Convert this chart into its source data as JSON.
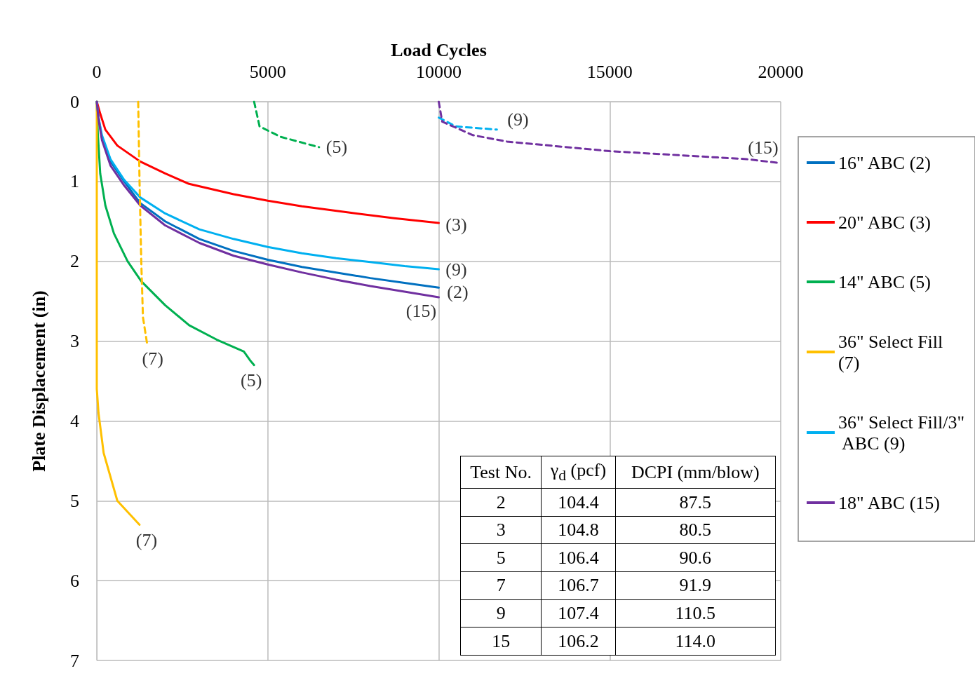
{
  "chart_data": {
    "type": "line",
    "xlabel": "Load Cycles",
    "ylabel": "Plate Displacement (in)",
    "xlim": [
      0,
      20000
    ],
    "xticks": [
      0,
      5000,
      10000,
      15000,
      20000
    ],
    "ylim": [
      7,
      0
    ],
    "yticks": [
      0,
      1,
      2,
      3,
      4,
      5,
      6,
      7
    ],
    "grid": true,
    "legend": "right",
    "marker": "none",
    "series": [
      {
        "name": "16\" ABC (2)",
        "color": "#0070c0",
        "line_style": "solid",
        "x": [
          0,
          50,
          150,
          400,
          800,
          1270,
          2000,
          3000,
          4000,
          5000,
          6000,
          7000,
          8000,
          9000,
          10000
        ],
        "values": [
          0,
          0.2,
          0.45,
          0.75,
          1.0,
          1.27,
          1.5,
          1.72,
          1.87,
          1.98,
          2.07,
          2.14,
          2.21,
          2.27,
          2.33
        ]
      },
      {
        "name": "20\" ABC (3)",
        "color": "#ff0000",
        "line_style": "solid",
        "x": [
          0,
          100,
          250,
          600,
          1270,
          2000,
          2700,
          4000,
          5000,
          6000,
          7400,
          8700,
          10000
        ],
        "values": [
          0,
          0.15,
          0.35,
          0.55,
          0.75,
          0.9,
          1.03,
          1.16,
          1.24,
          1.31,
          1.39,
          1.46,
          1.52
        ]
      },
      {
        "name": "14\" ABC (5)",
        "color": "#00b050",
        "line_style": "solid",
        "x": [
          0,
          30,
          100,
          250,
          500,
          900,
          1300,
          2000,
          2700,
          3500,
          4300,
          4500,
          4600
        ],
        "values": [
          0,
          0.4,
          0.9,
          1.3,
          1.65,
          2.0,
          2.25,
          2.55,
          2.8,
          2.98,
          3.13,
          3.25,
          3.3
        ]
      },
      {
        "name": "36\" Select Fill (7)",
        "color": "#ffc000",
        "line_style": "solid",
        "x": [
          0,
          0,
          50,
          200,
          600,
          1250
        ],
        "values": [
          0,
          3.6,
          3.9,
          4.4,
          5.0,
          5.3
        ]
      },
      {
        "name": "36\" Select Fill/3\" ABC (9)",
        "color": "#00b0f0",
        "line_style": "solid",
        "x": [
          0,
          50,
          150,
          400,
          800,
          1270,
          2000,
          3000,
          4000,
          5000,
          6000,
          7000,
          8000,
          9000,
          10000
        ],
        "values": [
          0,
          0.2,
          0.42,
          0.72,
          0.98,
          1.2,
          1.4,
          1.6,
          1.72,
          1.82,
          1.9,
          1.96,
          2.01,
          2.06,
          2.1
        ]
      },
      {
        "name": "18\" ABC (15)",
        "color": "#7030a0",
        "line_style": "solid",
        "x": [
          0,
          50,
          150,
          400,
          800,
          1270,
          2000,
          3000,
          4000,
          5000,
          6000,
          7000,
          8000,
          9000,
          10000
        ],
        "values": [
          0,
          0.22,
          0.48,
          0.8,
          1.05,
          1.3,
          1.55,
          1.77,
          1.93,
          2.04,
          2.14,
          2.23,
          2.31,
          2.38,
          2.45
        ]
      },
      {
        "color": "#00b050",
        "line_style": "dashed",
        "x": [
          4600,
          4760,
          5370,
          6500
        ],
        "values": [
          0,
          0.31,
          0.44,
          0.57
        ]
      },
      {
        "color": "#ffc000",
        "line_style": "dashed",
        "x": [
          1210,
          1250,
          1300,
          1350,
          1470
        ],
        "values": [
          0,
          1.0,
          2.0,
          2.7,
          3.03
        ]
      },
      {
        "color": "#00b0f0",
        "line_style": "dashed",
        "x": [
          10000,
          10500,
          11700
        ],
        "values": [
          0.2,
          0.31,
          0.35
        ]
      },
      {
        "color": "#7030a0",
        "line_style": "dashed",
        "x": [
          10000,
          10100,
          11000,
          12000,
          14000,
          15000,
          17000,
          19000,
          20000
        ],
        "values": [
          0,
          0.25,
          0.42,
          0.5,
          0.58,
          0.62,
          0.67,
          0.72,
          0.77
        ]
      }
    ],
    "annotations": [
      {
        "text": "(9)",
        "x": 11700,
        "y": 0.35
      },
      {
        "text": "(5)",
        "x": 6500,
        "y": 0.57
      },
      {
        "text": "(15)",
        "x": 20000,
        "y": 0.77
      },
      {
        "text": "(3)",
        "x": 10000,
        "y": 1.52
      },
      {
        "text": "(9)",
        "x": 10000,
        "y": 2.1
      },
      {
        "text": "(2)",
        "x": 10000,
        "y": 2.33
      },
      {
        "text": "(15)",
        "x": 10000,
        "y": 2.45
      },
      {
        "text": "(7)",
        "x": 1470,
        "y": 3.03
      },
      {
        "text": "(5)",
        "x": 4600,
        "y": 3.3
      },
      {
        "text": "(7)",
        "x": 1250,
        "y": 5.3
      },
      "Test No.",
      "γ$_{d}$ (pcf)",
      "DCPI (mm/blow)",
      "2",
      "104.4",
      "87.5",
      "3",
      "104.8",
      "80.5",
      "5",
      "106.4",
      "90.6",
      "7",
      "106.7",
      "91.9",
      "9",
      "107.4",
      "110.5",
      "15",
      "106.2",
      "114.0"
    ]
  }
}
